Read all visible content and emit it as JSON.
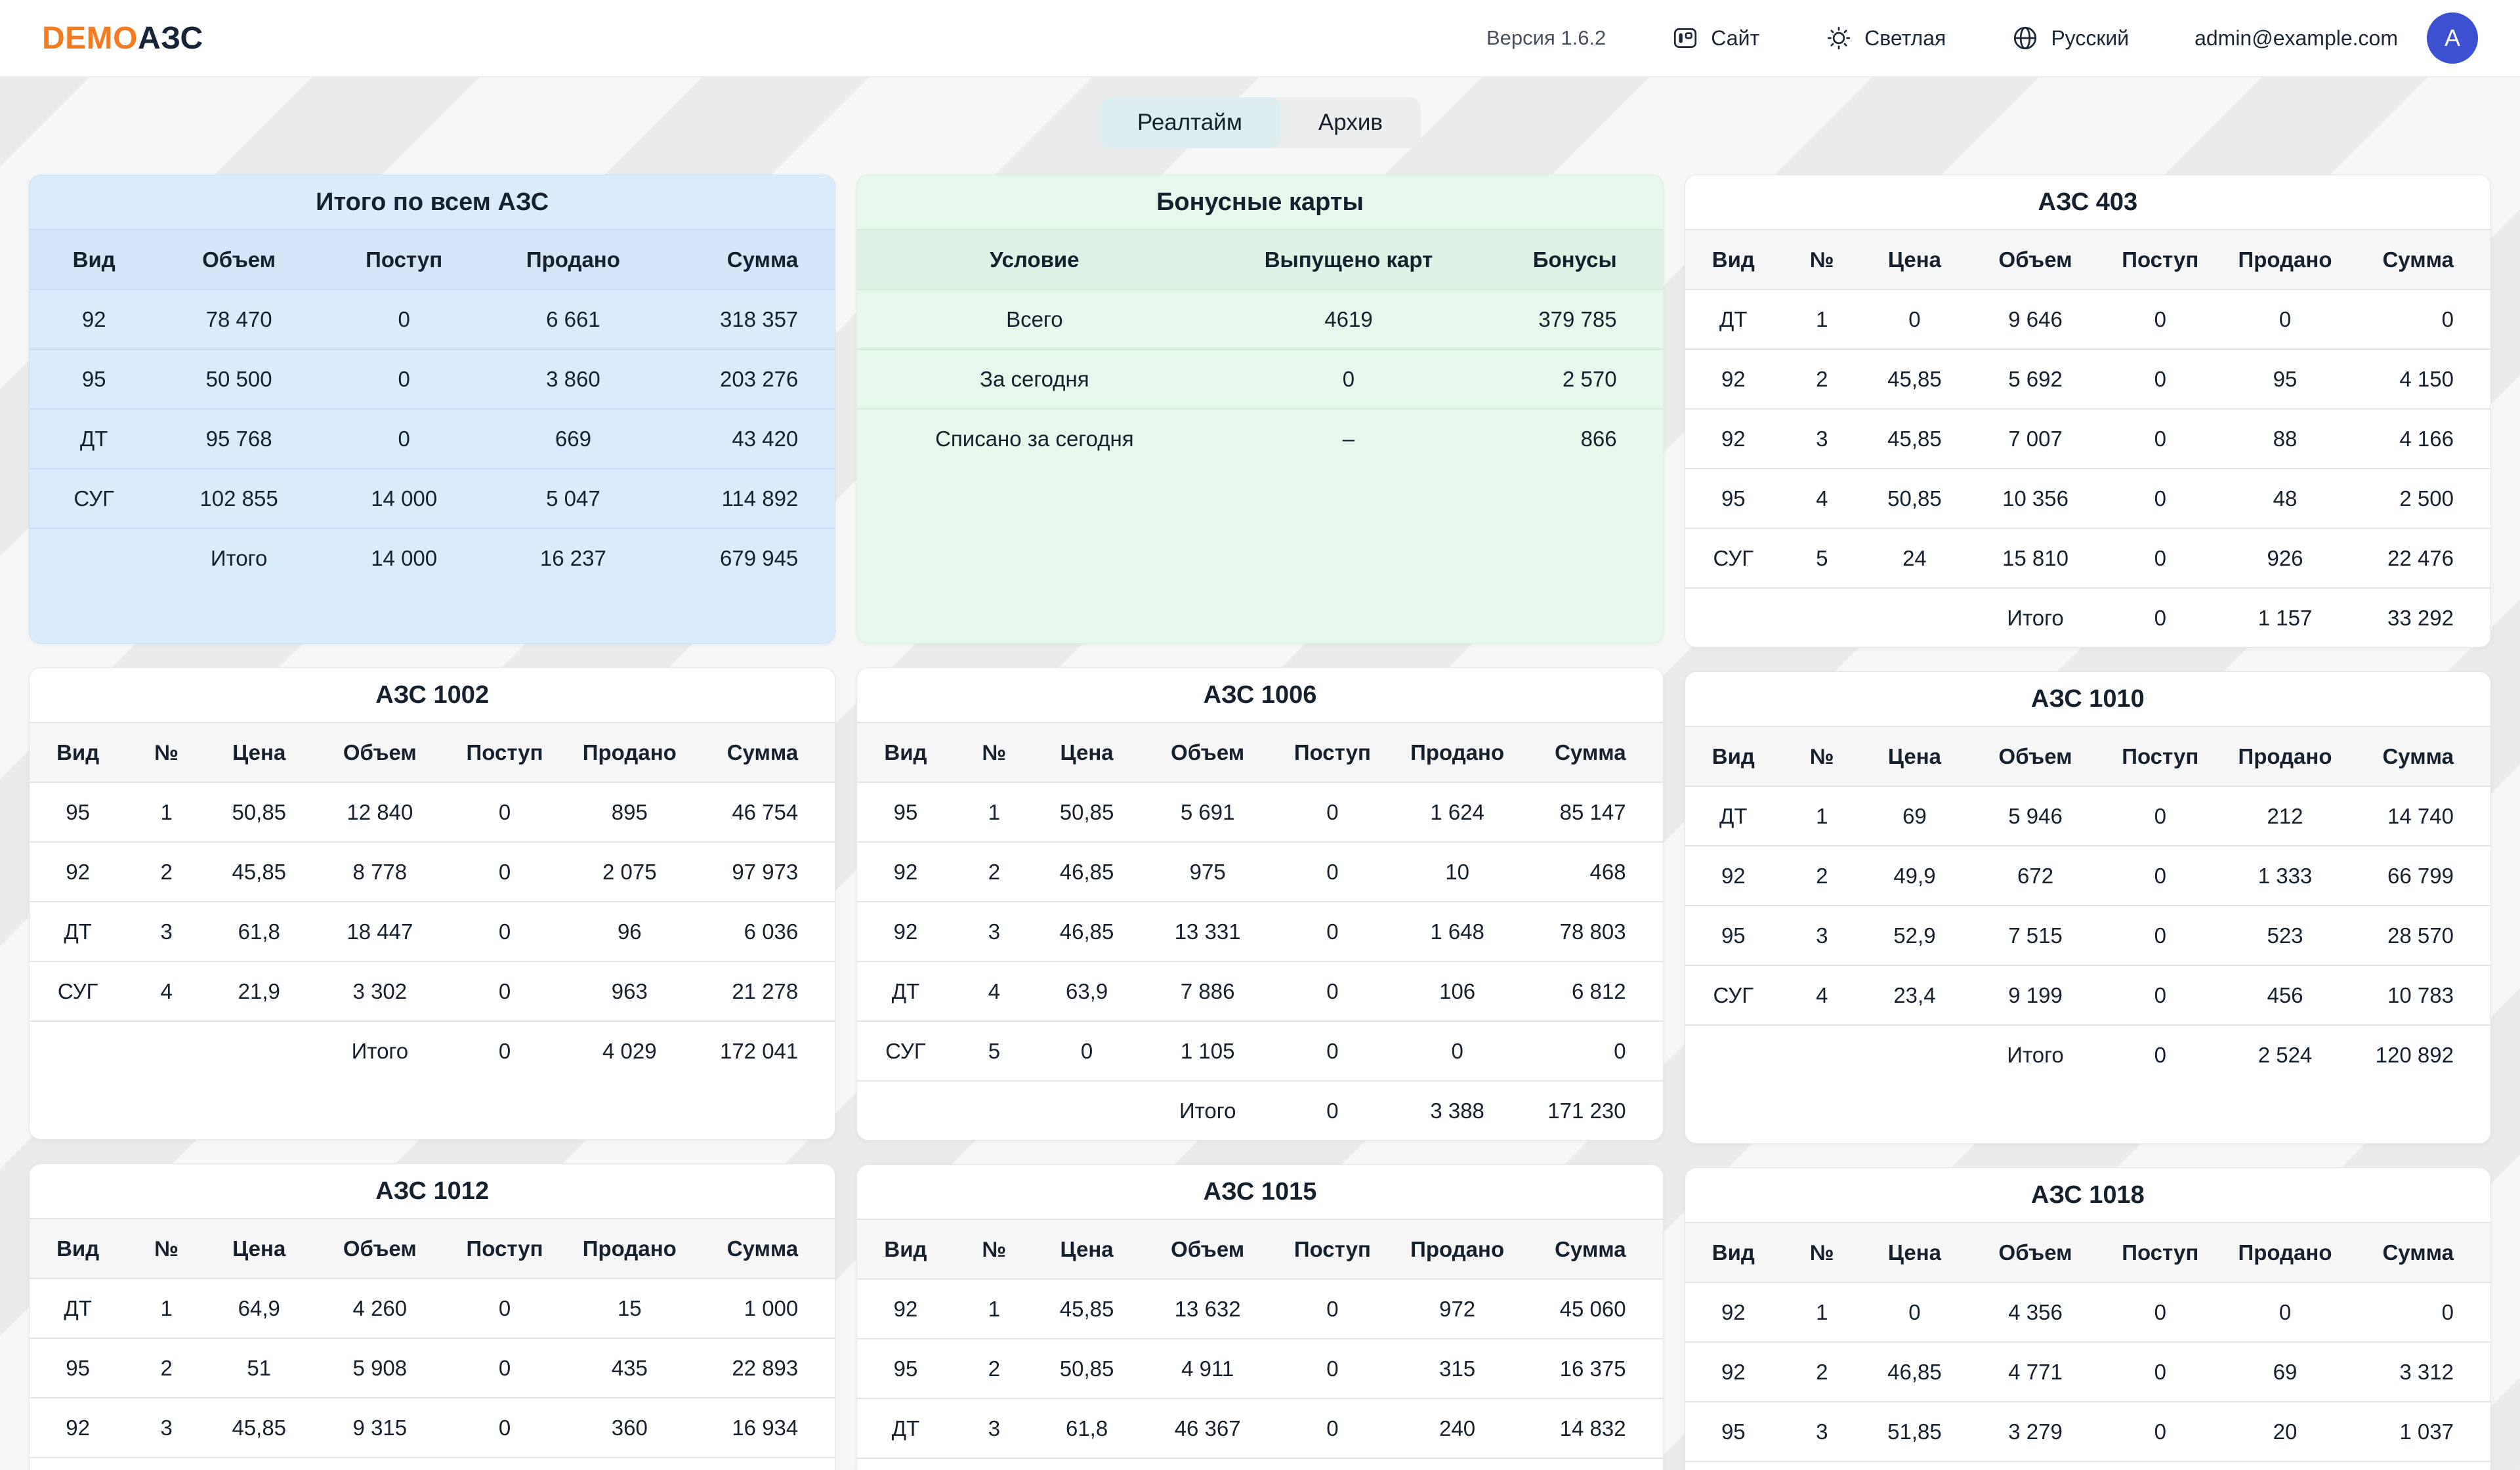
{
  "header": {
    "logo_primary": "DEMO",
    "logo_secondary": "АЗС",
    "version": "Версия 1.6.2",
    "site_label": "Сайт",
    "theme_label": "Светлая",
    "language_label": "Русский",
    "user_email": "admin@example.com",
    "avatar_initial": "A"
  },
  "tabs": {
    "items": [
      {
        "label": "Реалтайм",
        "active": true
      },
      {
        "label": "Архив",
        "active": false
      }
    ]
  },
  "colors": {
    "accent_orange": "#F47B20",
    "text_dark": "#15212E",
    "avatar_blue": "#3B51D1",
    "card_blue": "#D9ECFD",
    "card_green": "#E6F8EB",
    "tab_active": "#DCEEF2"
  },
  "columns": [
    [
      {
        "name": "totals-card",
        "title": "Итого по всем АЗС",
        "variant": "blue",
        "kind": "t5",
        "headers": [
          "Вид",
          "Объем",
          "Поступ",
          "Продано",
          "Сумма"
        ],
        "rows": [
          [
            "92",
            "78 470",
            "0",
            "6 661",
            "318 357"
          ],
          [
            "95",
            "50 500",
            "0",
            "3 860",
            "203 276"
          ],
          [
            "ДТ",
            "95 768",
            "0",
            "669",
            "43 420"
          ],
          [
            "СУГ",
            "102 855",
            "14 000",
            "5 047",
            "114 892"
          ],
          [
            "",
            "Итого",
            "14 000",
            "16 237",
            "679 945"
          ]
        ],
        "stub": false
      },
      {
        "name": "station-card-1002",
        "title": "АЗС 1002",
        "variant": "white",
        "kind": "t7",
        "headers": [
          "Вид",
          "№",
          "Цена",
          "Объем",
          "Поступ",
          "Продано",
          "Сумма"
        ],
        "rows": [
          [
            "95",
            "1",
            "50,85",
            "12 840",
            "0",
            "895",
            "46 754"
          ],
          [
            "92",
            "2",
            "45,85",
            "8 778",
            "0",
            "2 075",
            "97 973"
          ],
          [
            "ДТ",
            "3",
            "61,8",
            "18 447",
            "0",
            "96",
            "6 036"
          ],
          [
            "СУГ",
            "4",
            "21,9",
            "3 302",
            "0",
            "963",
            "21 278"
          ],
          [
            "",
            "",
            "",
            "Итого",
            "0",
            "4 029",
            "172 041"
          ]
        ],
        "stub": false
      },
      {
        "name": "station-card-1012",
        "title": "АЗС 1012",
        "variant": "white",
        "kind": "t7",
        "headers": [
          "Вид",
          "№",
          "Цена",
          "Объем",
          "Поступ",
          "Продано",
          "Сумма"
        ],
        "rows": [
          [
            "ДТ",
            "1",
            "64,9",
            "4 260",
            "0",
            "15",
            "1 000"
          ],
          [
            "95",
            "2",
            "51",
            "5 908",
            "0",
            "435",
            "22 893"
          ],
          [
            "92",
            "3",
            "45,85",
            "9 315",
            "0",
            "360",
            "16 934"
          ]
        ],
        "stub": true
      }
    ],
    [
      {
        "name": "bonus-card",
        "title": "Бонусные карты",
        "variant": "green",
        "kind": "t3",
        "headers": [
          "Условие",
          "Выпущено карт",
          "Бонусы"
        ],
        "rows": [
          [
            "Всего",
            "4619",
            "379 785"
          ],
          [
            "За сегодня",
            "0",
            "2 570"
          ],
          [
            "Списано за сегодня",
            "–",
            "866"
          ]
        ],
        "stub": false
      },
      {
        "name": "station-card-1006",
        "title": "АЗС 1006",
        "variant": "white",
        "kind": "t7",
        "headers": [
          "Вид",
          "№",
          "Цена",
          "Объем",
          "Поступ",
          "Продано",
          "Сумма"
        ],
        "rows": [
          [
            "95",
            "1",
            "50,85",
            "5 691",
            "0",
            "1 624",
            "85 147"
          ],
          [
            "92",
            "2",
            "46,85",
            "975",
            "0",
            "10",
            "468"
          ],
          [
            "92",
            "3",
            "46,85",
            "13 331",
            "0",
            "1 648",
            "78 803"
          ],
          [
            "ДТ",
            "4",
            "63,9",
            "7 886",
            "0",
            "106",
            "6 812"
          ],
          [
            "СУГ",
            "5",
            "0",
            "1 105",
            "0",
            "0",
            "0"
          ],
          [
            "",
            "",
            "",
            "Итого",
            "0",
            "3 388",
            "171 230"
          ]
        ],
        "stub": false
      },
      {
        "name": "station-card-1015",
        "title": "АЗС 1015",
        "variant": "white",
        "kind": "t7",
        "headers": [
          "Вид",
          "№",
          "Цена",
          "Объем",
          "Поступ",
          "Продано",
          "Сумма"
        ],
        "rows": [
          [
            "92",
            "1",
            "45,85",
            "13 632",
            "0",
            "972",
            "45 060"
          ],
          [
            "95",
            "2",
            "50,85",
            "4 911",
            "0",
            "315",
            "16 375"
          ],
          [
            "ДТ",
            "3",
            "61,8",
            "46 367",
            "0",
            "240",
            "14 832"
          ]
        ],
        "stub": true
      }
    ],
    [
      {
        "name": "station-card-403",
        "title": "АЗС 403",
        "variant": "white",
        "kind": "t7",
        "headers": [
          "Вид",
          "№",
          "Цена",
          "Объем",
          "Поступ",
          "Продано",
          "Сумма"
        ],
        "rows": [
          [
            "ДТ",
            "1",
            "0",
            "9 646",
            "0",
            "0",
            "0"
          ],
          [
            "92",
            "2",
            "45,85",
            "5 692",
            "0",
            "95",
            "4 150"
          ],
          [
            "92",
            "3",
            "45,85",
            "7 007",
            "0",
            "88",
            "4 166"
          ],
          [
            "95",
            "4",
            "50,85",
            "10 356",
            "0",
            "48",
            "2 500"
          ],
          [
            "СУГ",
            "5",
            "24",
            "15 810",
            "0",
            "926",
            "22 476"
          ],
          [
            "",
            "",
            "",
            "Итого",
            "0",
            "1 157",
            "33 292"
          ]
        ],
        "stub": false
      },
      {
        "name": "station-card-1010",
        "title": "АЗС 1010",
        "variant": "white",
        "kind": "t7",
        "headers": [
          "Вид",
          "№",
          "Цена",
          "Объем",
          "Поступ",
          "Продано",
          "Сумма"
        ],
        "rows": [
          [
            "ДТ",
            "1",
            "69",
            "5 946",
            "0",
            "212",
            "14 740"
          ],
          [
            "92",
            "2",
            "49,9",
            "672",
            "0",
            "1 333",
            "66 799"
          ],
          [
            "95",
            "3",
            "52,9",
            "7 515",
            "0",
            "523",
            "28 570"
          ],
          [
            "СУГ",
            "4",
            "23,4",
            "9 199",
            "0",
            "456",
            "10 783"
          ],
          [
            "",
            "",
            "",
            "Итого",
            "0",
            "2 524",
            "120 892"
          ]
        ],
        "stub": false
      },
      {
        "name": "station-card-1018",
        "title": "АЗС 1018",
        "variant": "white",
        "kind": "t7",
        "headers": [
          "Вид",
          "№",
          "Цена",
          "Объем",
          "Поступ",
          "Продано",
          "Сумма"
        ],
        "rows": [
          [
            "92",
            "1",
            "0",
            "4 356",
            "0",
            "0",
            "0"
          ],
          [
            "92",
            "2",
            "46,85",
            "4 771",
            "0",
            "69",
            "3 312"
          ],
          [
            "95",
            "3",
            "51,85",
            "3 279",
            "0",
            "20",
            "1 037"
          ]
        ],
        "stub": true
      }
    ]
  ]
}
